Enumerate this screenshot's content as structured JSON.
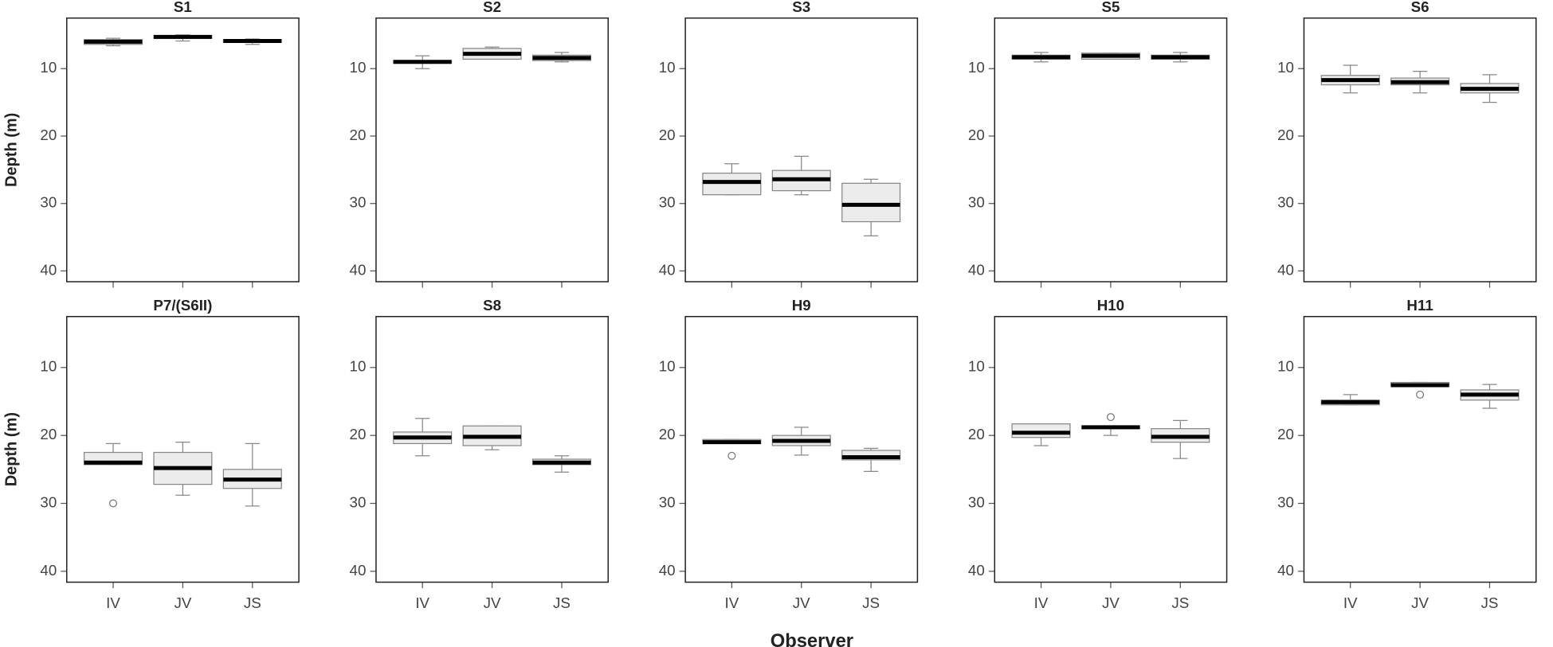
{
  "x_label": "Observer",
  "chart_data": [
    {
      "type": "box",
      "title": "S1",
      "ylabel": "Depth (m)",
      "categories": [
        null,
        null,
        null
      ],
      "ylim": [
        41.6,
        2.5
      ],
      "yticks": [
        10,
        20,
        30,
        40
      ],
      "boxes": [
        {
          "min": 5.5,
          "q1": 5.7,
          "median": 6.0,
          "q3": 6.4,
          "max": 6.6
        },
        {
          "min": 5.0,
          "q1": 5.1,
          "median": 5.3,
          "q3": 5.5,
          "max": 5.9
        },
        {
          "min": 5.6,
          "q1": 5.7,
          "median": 5.9,
          "q3": 6.1,
          "max": 6.4
        }
      ]
    },
    {
      "type": "box",
      "title": "S2",
      "categories": [
        null,
        null,
        null
      ],
      "ylim": [
        41.6,
        2.5
      ],
      "yticks": [
        10,
        20,
        30,
        40
      ],
      "boxes": [
        {
          "min": 8.1,
          "q1": 8.8,
          "median": 9.0,
          "q3": 9.2,
          "max": 10.0
        },
        {
          "min": 6.8,
          "q1": 7.0,
          "median": 7.8,
          "q3": 8.6,
          "max": 8.6
        },
        {
          "min": 7.6,
          "q1": 8.0,
          "median": 8.4,
          "q3": 8.8,
          "max": 9.0
        }
      ]
    },
    {
      "type": "box",
      "title": "S3",
      "categories": [
        null,
        null,
        null
      ],
      "ylim": [
        41.6,
        2.5
      ],
      "yticks": [
        10,
        20,
        30,
        40
      ],
      "boxes": [
        {
          "min": 24.1,
          "q1": 25.5,
          "median": 26.8,
          "q3": 28.7,
          "max": 28.7
        },
        {
          "min": 23.0,
          "q1": 25.1,
          "median": 26.4,
          "q3": 28.1,
          "max": 28.7
        },
        {
          "min": 26.4,
          "q1": 27.0,
          "median": 30.2,
          "q3": 32.7,
          "max": 34.8
        }
      ]
    },
    {
      "type": "box",
      "title": "S5",
      "categories": [
        null,
        null,
        null
      ],
      "ylim": [
        41.6,
        2.5
      ],
      "yticks": [
        10,
        20,
        30,
        40
      ],
      "boxes": [
        {
          "min": 7.6,
          "q1": 8.0,
          "median": 8.3,
          "q3": 8.6,
          "max": 9.0
        },
        {
          "min": 7.7,
          "q1": 7.7,
          "median": 8.1,
          "q3": 8.6,
          "max": 8.6
        },
        {
          "min": 7.6,
          "q1": 8.0,
          "median": 8.3,
          "q3": 8.6,
          "max": 9.0
        }
      ]
    },
    {
      "type": "box",
      "title": "S6",
      "categories": [
        null,
        null,
        null
      ],
      "ylim": [
        41.6,
        2.5
      ],
      "yticks": [
        10,
        20,
        30,
        40
      ],
      "boxes": [
        {
          "min": 9.5,
          "q1": 11.0,
          "median": 11.7,
          "q3": 12.4,
          "max": 13.6
        },
        {
          "min": 10.4,
          "q1": 11.4,
          "median": 12.0,
          "q3": 12.4,
          "max": 13.6
        },
        {
          "min": 10.9,
          "q1": 12.2,
          "median": 13.0,
          "q3": 13.6,
          "max": 15.0
        }
      ]
    },
    {
      "type": "box",
      "title": "P7/(S6II)",
      "ylabel": "Depth (m)",
      "categories": [
        "IV",
        "JV",
        "JS"
      ],
      "ylim": [
        41.6,
        2.5
      ],
      "yticks": [
        10,
        20,
        30,
        40
      ],
      "boxes": [
        {
          "min": 21.2,
          "q1": 22.5,
          "median": 24.0,
          "q3": 24.3,
          "max": 24.3,
          "outliers": [
            30.0
          ]
        },
        {
          "min": 21.0,
          "q1": 22.5,
          "median": 24.8,
          "q3": 27.2,
          "max": 28.8
        },
        {
          "min": 21.2,
          "q1": 25.0,
          "median": 26.5,
          "q3": 27.8,
          "max": 30.4
        }
      ]
    },
    {
      "type": "box",
      "title": "S8",
      "categories": [
        "IV",
        "JV",
        "JS"
      ],
      "ylim": [
        41.6,
        2.5
      ],
      "yticks": [
        10,
        20,
        30,
        40
      ],
      "boxes": [
        {
          "min": 17.5,
          "q1": 19.5,
          "median": 20.3,
          "q3": 21.2,
          "max": 23.0
        },
        {
          "min": 18.6,
          "q1": 18.6,
          "median": 20.2,
          "q3": 21.5,
          "max": 22.1
        },
        {
          "min": 23.0,
          "q1": 23.5,
          "median": 24.0,
          "q3": 24.3,
          "max": 25.4
        }
      ]
    },
    {
      "type": "box",
      "title": "H9",
      "categories": [
        "IV",
        "JV",
        "JS"
      ],
      "ylim": [
        41.6,
        2.5
      ],
      "yticks": [
        10,
        20,
        30,
        40
      ],
      "boxes": [
        {
          "min": 20.6,
          "q1": 20.6,
          "median": 21.0,
          "q3": 21.2,
          "max": 21.2,
          "outliers": [
            23.0
          ]
        },
        {
          "min": 18.8,
          "q1": 20.0,
          "median": 20.8,
          "q3": 21.5,
          "max": 22.9
        },
        {
          "min": 21.9,
          "q1": 22.2,
          "median": 23.2,
          "q3": 23.6,
          "max": 25.3
        }
      ]
    },
    {
      "type": "box",
      "title": "H10",
      "categories": [
        "IV",
        "JV",
        "JS"
      ],
      "ylim": [
        41.6,
        2.5
      ],
      "yticks": [
        10,
        20,
        30,
        40
      ],
      "boxes": [
        {
          "min": 18.3,
          "q1": 18.3,
          "median": 19.6,
          "q3": 20.3,
          "max": 21.5
        },
        {
          "min": 18.6,
          "q1": 18.6,
          "median": 18.8,
          "q3": 19.0,
          "max": 20.0,
          "outliers": [
            17.3
          ]
        },
        {
          "min": 17.8,
          "q1": 19.0,
          "median": 20.2,
          "q3": 21.0,
          "max": 23.4
        }
      ]
    },
    {
      "type": "box",
      "title": "H11",
      "categories": [
        "IV",
        "JV",
        "JS"
      ],
      "ylim": [
        41.6,
        2.5
      ],
      "yticks": [
        10,
        20,
        30,
        40
      ],
      "boxes": [
        {
          "min": 14.0,
          "q1": 14.8,
          "median": 15.1,
          "q3": 15.5,
          "max": 15.5
        },
        {
          "min": 12.2,
          "q1": 12.2,
          "median": 12.6,
          "q3": 12.8,
          "max": 12.8,
          "outliers": [
            14.0
          ]
        },
        {
          "min": 12.5,
          "q1": 13.3,
          "median": 14.0,
          "q3": 14.8,
          "max": 16.0
        }
      ]
    }
  ]
}
